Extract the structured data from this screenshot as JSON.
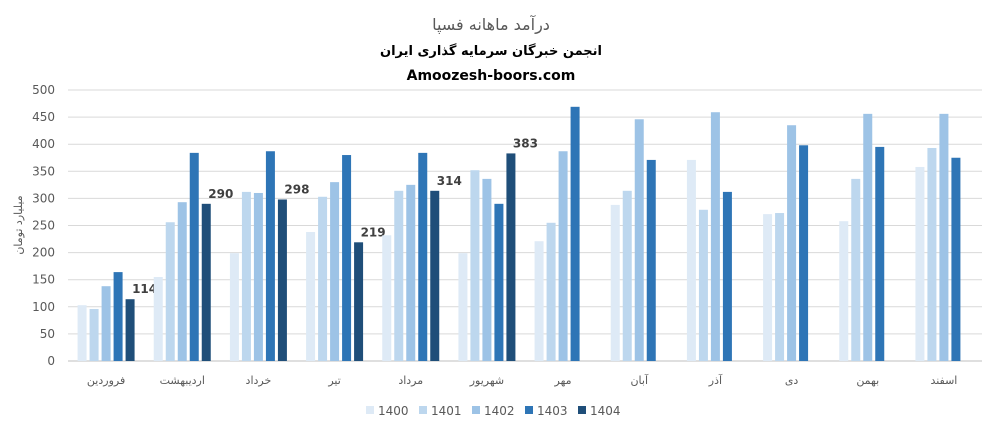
{
  "chart_data": {
    "type": "bar",
    "title": "درآمد ماهانه فسپا",
    "subtitle": "انجمن خبرگان سرمایه گذاری ایران",
    "subtitle2": "Amoozesh-boors.com",
    "xlabel": "",
    "ylabel": "میلیارد تومان",
    "ylim": [
      0,
      500
    ],
    "yticks": [
      0,
      50,
      100,
      150,
      200,
      250,
      300,
      350,
      400,
      450,
      500
    ],
    "grid": true,
    "legend_position": "bottom",
    "categories": [
      "فروردین",
      "اردیبهشت",
      "خرداد",
      "تیر",
      "مرداد",
      "شهریور",
      "مهر",
      "آبان",
      "آذر",
      "دی",
      "بهمن",
      "اسفند"
    ],
    "series": [
      {
        "name": "1400",
        "color": "#deeaf6",
        "values": [
          103,
          155,
          199,
          238,
          232,
          199,
          221,
          288,
          371,
          271,
          258,
          358
        ]
      },
      {
        "name": "1401",
        "color": "#bdd7ee",
        "values": [
          96,
          256,
          312,
          303,
          314,
          352,
          255,
          314,
          279,
          273,
          336,
          393
        ]
      },
      {
        "name": "1402",
        "color": "#9dc3e6",
        "values": [
          138,
          293,
          310,
          330,
          325,
          336,
          387,
          446,
          459,
          435,
          456,
          456
        ]
      },
      {
        "name": "1403",
        "color": "#2e75b6",
        "values": [
          164,
          384,
          387,
          380,
          384,
          290,
          469,
          371,
          312,
          398,
          395,
          375
        ]
      },
      {
        "name": "1404",
        "color": "#1f4e79",
        "values": [
          114,
          290,
          298,
          219,
          314,
          383,
          null,
          null,
          null,
          null,
          null,
          null
        ],
        "data_labels": true
      }
    ]
  }
}
